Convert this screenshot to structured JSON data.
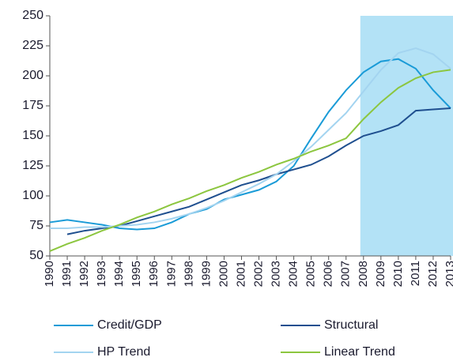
{
  "chart_data": {
    "type": "line",
    "x": [
      1990,
      1991,
      1992,
      1993,
      1994,
      1995,
      1996,
      1997,
      1998,
      1999,
      2000,
      2001,
      2002,
      2003,
      2004,
      2005,
      2006,
      2007,
      2008,
      2009,
      2010,
      2011,
      2012,
      2013
    ],
    "xlim": [
      1990,
      2013
    ],
    "ylim": [
      50,
      250
    ],
    "yticks": [
      50,
      75,
      100,
      125,
      150,
      175,
      200,
      225,
      250
    ],
    "highlight": {
      "from": 2008,
      "to": 2013,
      "color": "#b3e2f6"
    },
    "legend": "bottom",
    "series": [
      {
        "name": "Credit/GDP",
        "color": "#1a9bd7",
        "values": [
          78,
          80,
          78,
          76,
          73,
          72,
          73,
          78,
          85,
          89,
          97,
          101,
          105,
          112,
          125,
          148,
          170,
          188,
          203,
          212,
          214,
          206,
          188,
          173
        ]
      },
      {
        "name": "Structural",
        "color": "#1f4f8f",
        "values": [
          null,
          68,
          71,
          73,
          75,
          79,
          83,
          87,
          91,
          97,
          103,
          109,
          113,
          118,
          122,
          126,
          133,
          142,
          150,
          154,
          159,
          171,
          172,
          173
        ]
      },
      {
        "name": "HP Trend",
        "color": "#a3d4f0",
        "values": [
          73,
          73,
          74,
          74,
          75,
          76,
          78,
          81,
          85,
          90,
          96,
          103,
          110,
          118,
          129,
          141,
          155,
          169,
          187,
          205,
          219,
          223,
          218,
          206
        ]
      },
      {
        "name": "Linear Trend",
        "color": "#8cc63f",
        "values": [
          54,
          60,
          65,
          71,
          76,
          82,
          87,
          93,
          98,
          104,
          109,
          115,
          120,
          126,
          131,
          137,
          142,
          148,
          164,
          178,
          190,
          198,
          203,
          205
        ]
      }
    ]
  }
}
